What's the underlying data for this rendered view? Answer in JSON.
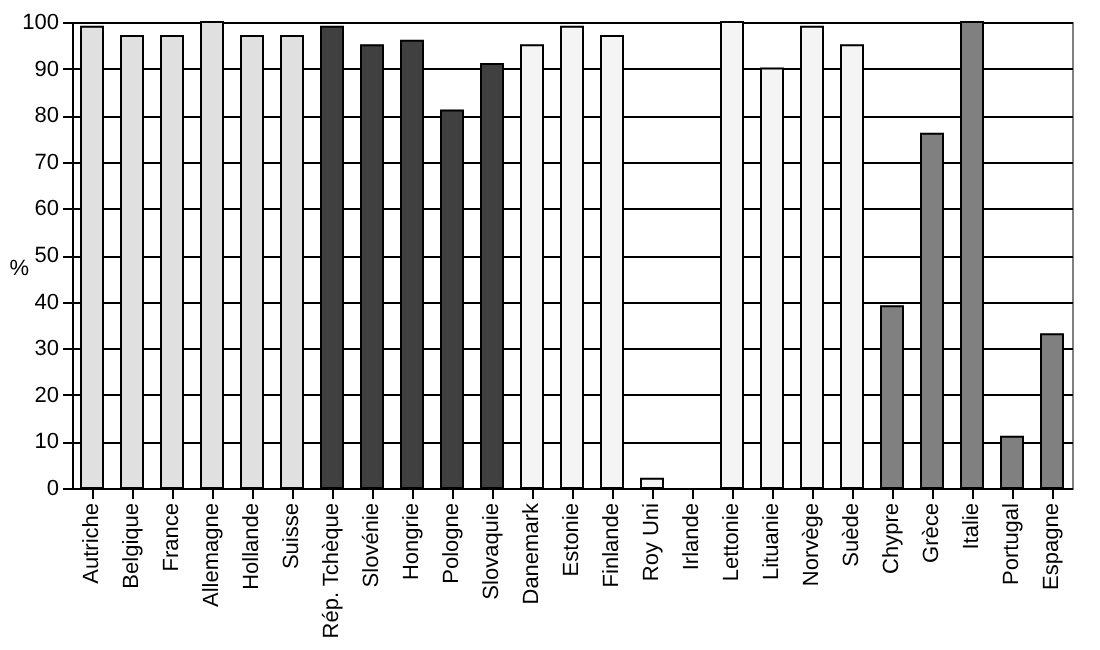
{
  "chart_data": {
    "type": "bar",
    "ylabel": "%",
    "categories": [
      "Autriche",
      "Belgique",
      "France",
      "Allemagne",
      "Hollande",
      "Suisse",
      "Rép. Tchèque",
      "Slovénie",
      "Hongrie",
      "Pologne",
      "Slovaquie",
      "Danemark",
      "Estonie",
      "Finlande",
      "Roy Uni",
      "Irlande",
      "Lettonie",
      "Lituanie",
      "Norvège",
      "Suède",
      "Chypre",
      "Grèce",
      "Italie",
      "Portugal",
      "Espagne"
    ],
    "values": [
      99,
      97,
      97,
      100,
      97,
      97,
      99,
      95,
      96,
      81,
      91,
      95,
      99,
      97,
      2,
      0,
      100,
      90,
      99,
      95,
      39,
      76,
      100,
      11,
      33
    ],
    "colors": [
      "#e0e0e0",
      "#e0e0e0",
      "#e0e0e0",
      "#e0e0e0",
      "#e0e0e0",
      "#e0e0e0",
      "#404040",
      "#404040",
      "#404040",
      "#404040",
      "#404040",
      "#f4f4f4",
      "#f4f4f4",
      "#f4f4f4",
      "#f4f4f4",
      "#f4f4f4",
      "#f4f4f4",
      "#f4f4f4",
      "#f4f4f4",
      "#f4f4f4",
      "#808080",
      "#808080",
      "#808080",
      "#808080",
      "#808080"
    ],
    "ylim": [
      0,
      100
    ],
    "yticks": [
      0,
      10,
      20,
      30,
      40,
      50,
      60,
      70,
      80,
      90,
      100
    ],
    "grid": "y"
  }
}
